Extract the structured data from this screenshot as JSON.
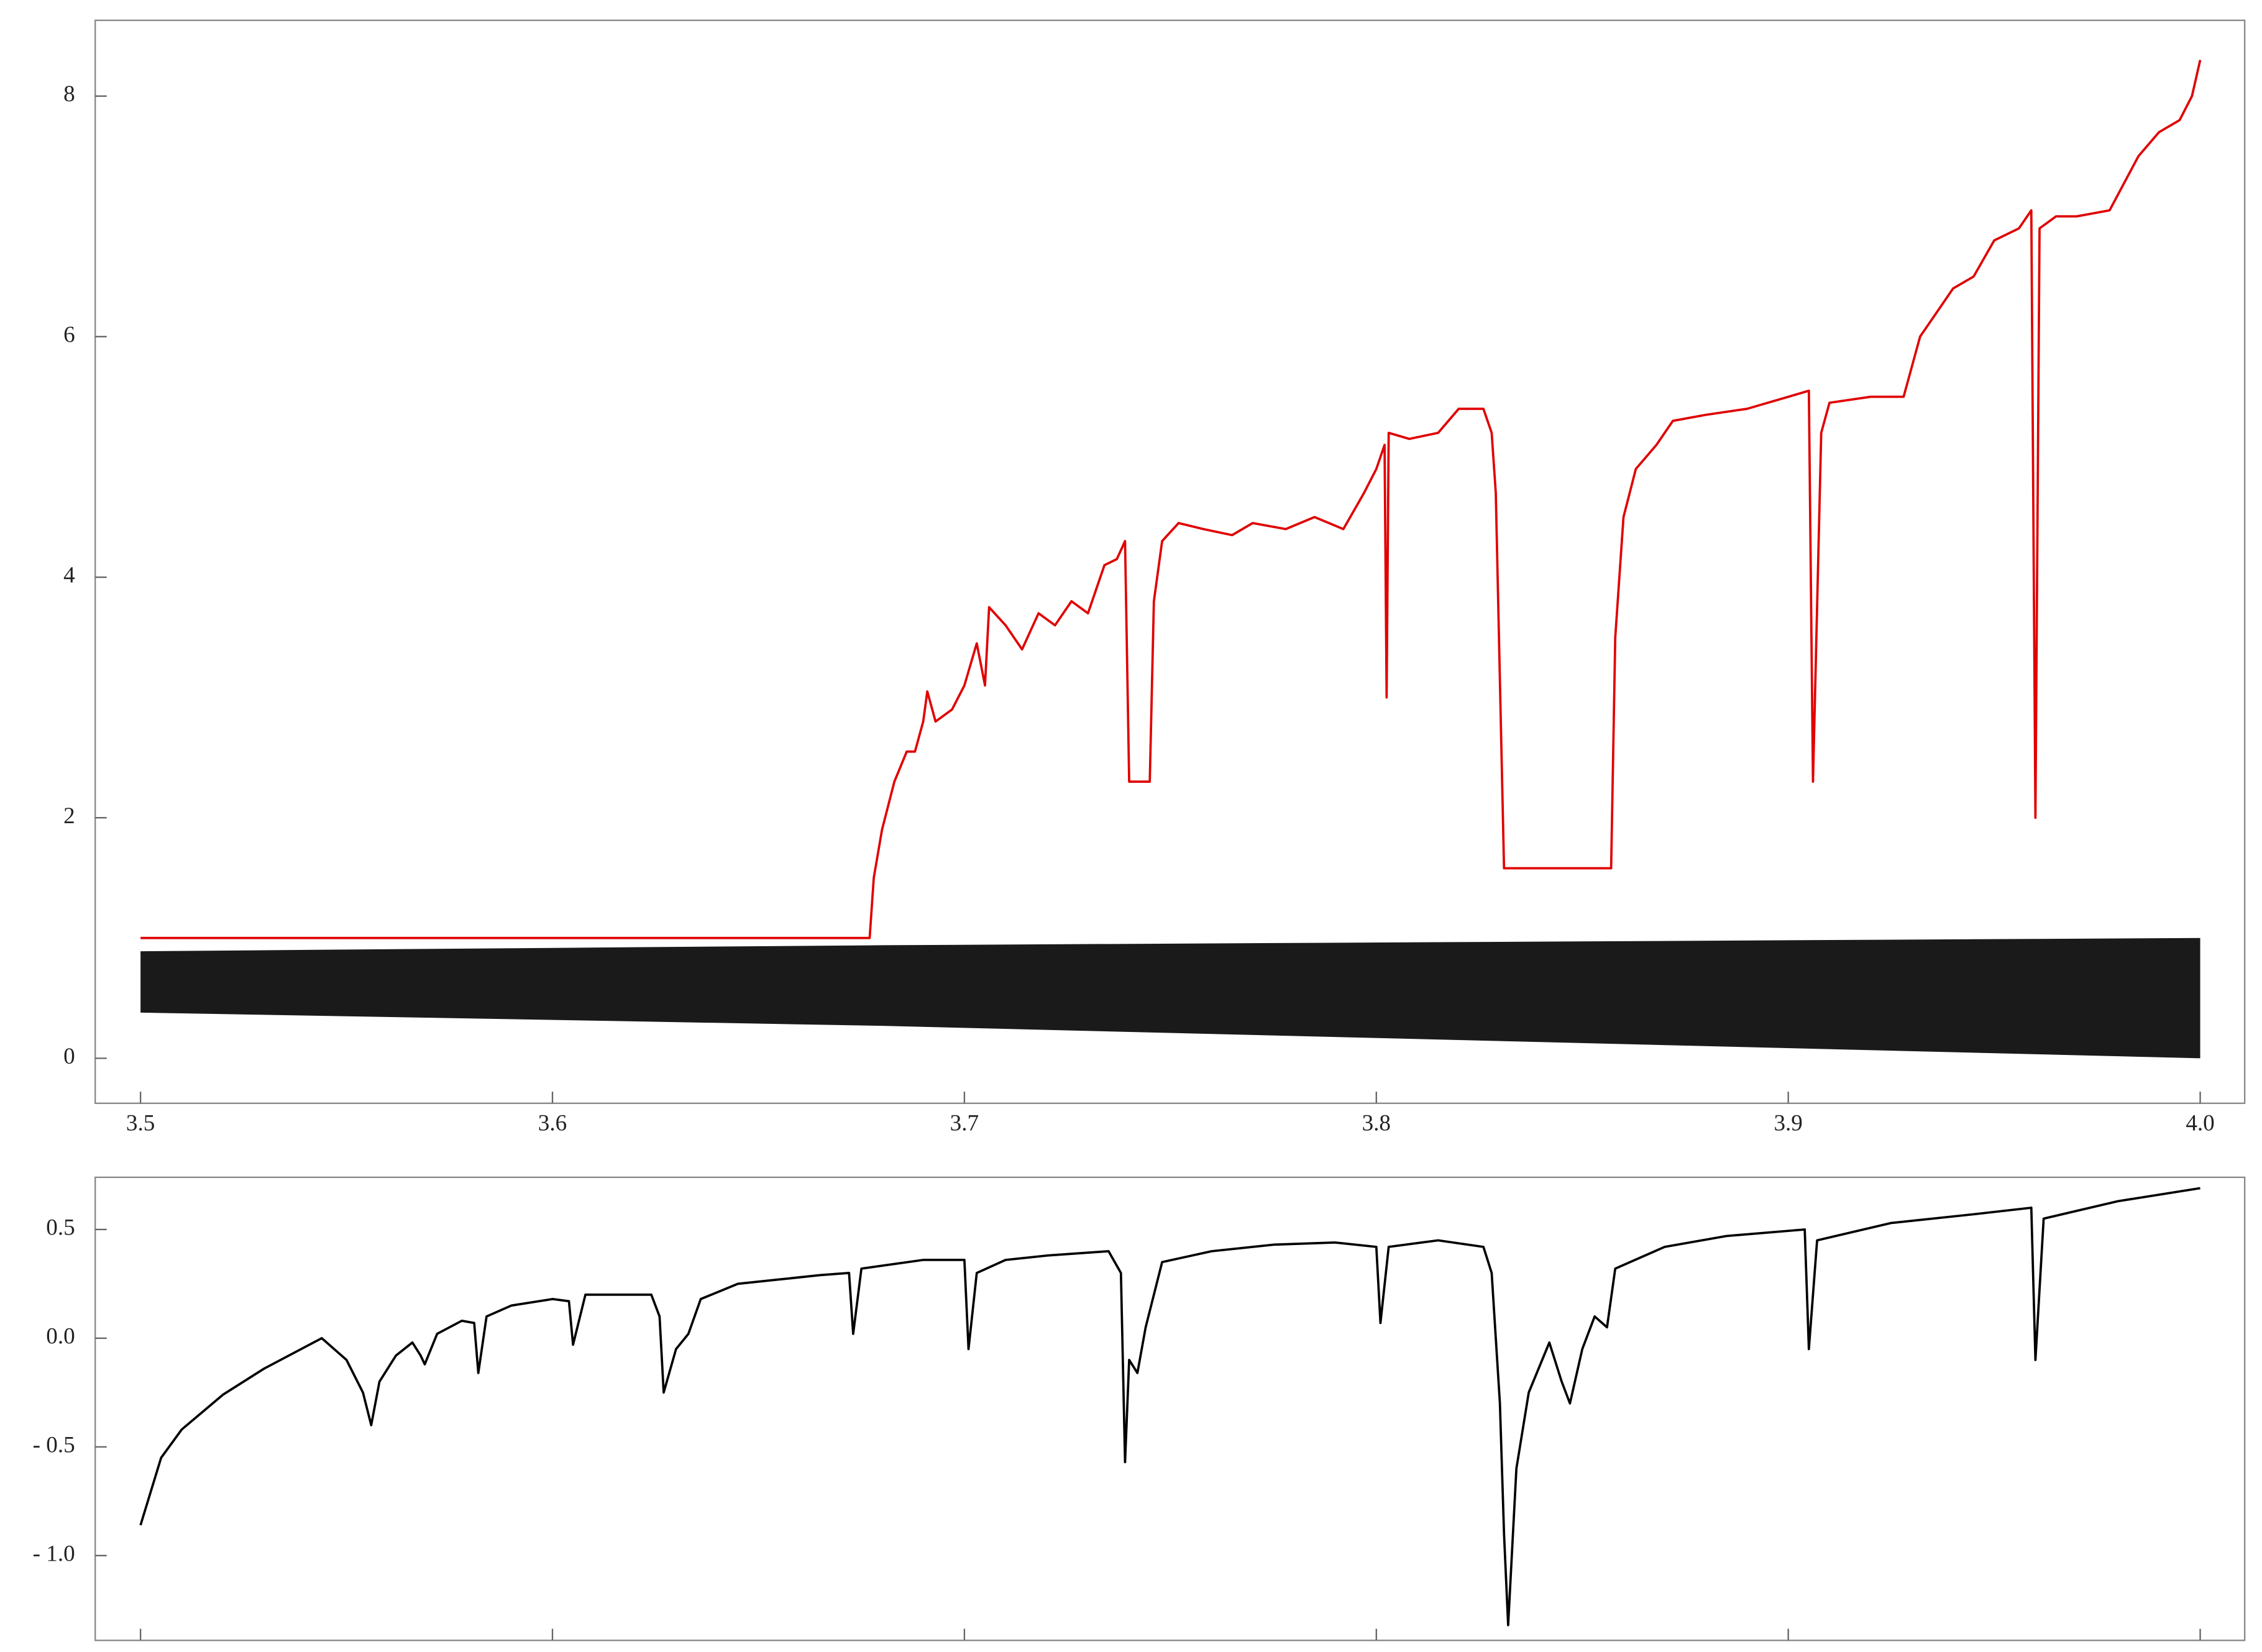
{
  "chart_data": [
    {
      "type": "line",
      "xlim": [
        3.489,
        4.0108
      ],
      "ylim": [
        -0.374,
        8.63
      ],
      "xticks": [
        3.5,
        3.6,
        3.7,
        3.8,
        3.9,
        {
          "value": 4.0,
          "label": "4.0"
        }
      ],
      "yticks": [
        0,
        2,
        4,
        6,
        8
      ],
      "series": [
        {
          "color": "#e00000",
          "x": [
            3.5,
            3.677,
            3.678,
            3.68,
            3.683,
            3.686,
            3.688,
            3.69,
            3.691,
            3.693,
            3.697,
            3.7,
            3.703,
            3.705,
            3.706,
            3.71,
            3.714,
            3.718,
            3.722,
            3.726,
            3.73,
            3.734,
            3.737,
            3.739,
            3.74,
            3.745,
            3.746,
            3.748,
            3.752,
            3.758,
            3.765,
            3.77,
            3.778,
            3.785,
            3.792,
            3.797,
            3.8,
            3.802,
            3.8025,
            3.803,
            3.808,
            3.815,
            3.82,
            3.826,
            3.828,
            3.829,
            3.831,
            3.857,
            3.858,
            3.86,
            3.863,
            3.868,
            3.872,
            3.88,
            3.89,
            3.9,
            3.905,
            3.906,
            3.908,
            3.91,
            3.92,
            3.928,
            3.932,
            3.936,
            3.94,
            3.945,
            3.95,
            3.956,
            3.959,
            3.96,
            3.961,
            3.965,
            3.97,
            3.978,
            3.985,
            3.99,
            3.995,
            3.998,
            4.0
          ],
          "values": [
            1.0,
            1.0,
            1.5,
            1.9,
            2.3,
            2.55,
            2.55,
            2.8,
            3.05,
            2.8,
            2.9,
            3.1,
            3.45,
            3.1,
            3.75,
            3.6,
            3.4,
            3.7,
            3.6,
            3.8,
            3.7,
            4.1,
            4.15,
            4.3,
            2.3,
            2.3,
            3.8,
            4.3,
            4.45,
            4.4,
            4.35,
            4.45,
            4.4,
            4.5,
            4.4,
            4.7,
            4.9,
            5.1,
            3.0,
            5.2,
            5.15,
            5.2,
            5.4,
            5.4,
            5.2,
            4.7,
            1.58,
            1.58,
            3.5,
            4.5,
            4.9,
            5.1,
            5.3,
            5.35,
            5.4,
            5.5,
            5.55,
            2.3,
            5.2,
            5.45,
            5.5,
            5.5,
            6.0,
            6.2,
            6.4,
            6.5,
            6.8,
            6.9,
            7.05,
            2.0,
            6.9,
            7.0,
            7.0,
            7.05,
            7.5,
            7.7,
            7.8,
            8.0,
            8.3
          ]
        }
      ],
      "band": {
        "color": "#1a1a1a",
        "x": [
          3.5,
          3.68,
          4.0
        ],
        "lower": [
          0.38,
          0.27,
          0
        ],
        "upper": [
          0.89,
          0.94,
          1.0
        ]
      }
    },
    {
      "type": "line",
      "xlim": [
        3.489,
        4.0108
      ],
      "ylim": [
        -1.39,
        0.74
      ],
      "xticks": [
        3.5,
        3.6,
        3.7,
        3.8,
        3.9,
        4.0
      ],
      "x_tick_labels": false,
      "yticks": [
        0.5,
        {
          "value": 0,
          "label": "0.0"
        },
        {
          "value": -0.5,
          "label": "- 0.5"
        },
        {
          "value": -1,
          "label": "- 1.0"
        }
      ],
      "series": [
        {
          "color": "#000000",
          "x": [
            3.5,
            3.505,
            3.51,
            3.52,
            3.53,
            3.538,
            3.544,
            3.55,
            3.554,
            3.556,
            3.558,
            3.562,
            3.566,
            3.568,
            3.569,
            3.572,
            3.578,
            3.581,
            3.582,
            3.584,
            3.59,
            3.6,
            3.604,
            3.605,
            3.608,
            3.615,
            3.624,
            3.626,
            3.627,
            3.63,
            3.633,
            3.636,
            3.645,
            3.655,
            3.665,
            3.672,
            3.673,
            3.675,
            3.69,
            3.7,
            3.701,
            3.703,
            3.71,
            3.72,
            3.735,
            3.738,
            3.739,
            3.74,
            3.742,
            3.744,
            3.748,
            3.76,
            3.775,
            3.79,
            3.8,
            3.801,
            3.803,
            3.815,
            3.826,
            3.828,
            3.83,
            3.831,
            3.832,
            3.834,
            3.837,
            3.842,
            3.845,
            3.847,
            3.85,
            3.853,
            3.856,
            3.858,
            3.87,
            3.885,
            3.904,
            3.905,
            3.907,
            3.925,
            3.945,
            3.959,
            3.96,
            3.962,
            3.98,
            4.0
          ],
          "values": [
            -0.86,
            -0.55,
            -0.42,
            -0.26,
            -0.14,
            -0.06,
            0.0,
            -0.1,
            -0.25,
            -0.4,
            -0.2,
            -0.08,
            -0.02,
            -0.08,
            -0.12,
            0.02,
            0.08,
            0.07,
            -0.16,
            0.1,
            0.15,
            0.18,
            0.17,
            -0.03,
            0.2,
            0.2,
            0.2,
            0.1,
            -0.25,
            -0.05,
            0.02,
            0.18,
            0.25,
            0.27,
            0.29,
            0.3,
            0.02,
            0.32,
            0.36,
            0.36,
            -0.05,
            0.3,
            0.36,
            0.38,
            0.4,
            0.3,
            -0.57,
            -0.1,
            -0.16,
            0.05,
            0.35,
            0.4,
            0.43,
            0.44,
            0.42,
            0.07,
            0.42,
            0.45,
            0.42,
            0.3,
            -0.3,
            -0.9,
            -1.32,
            -0.6,
            -0.25,
            -0.02,
            -0.2,
            -0.3,
            -0.05,
            0.1,
            0.05,
            0.32,
            0.42,
            0.47,
            0.5,
            -0.05,
            0.45,
            0.53,
            0.57,
            0.6,
            -0.1,
            0.55,
            0.63,
            0.69
          ]
        }
      ]
    }
  ]
}
